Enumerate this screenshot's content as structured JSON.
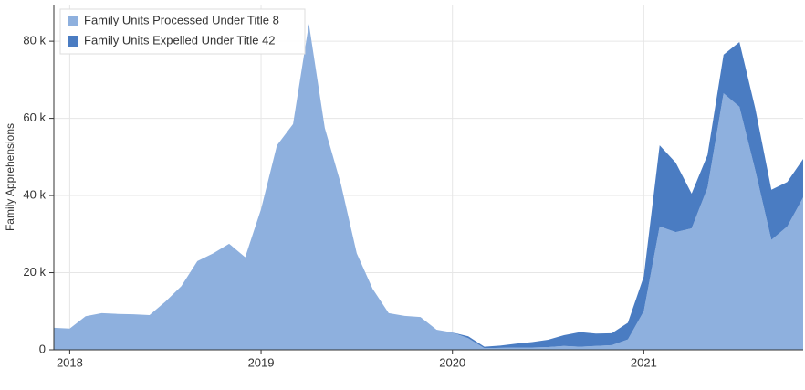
{
  "chart_data": {
    "type": "stacked_area",
    "ylabel": "Family Apprehensions",
    "x": [
      2017.917,
      2018.0,
      2018.083,
      2018.167,
      2018.25,
      2018.333,
      2018.417,
      2018.5,
      2018.583,
      2018.667,
      2018.75,
      2018.833,
      2018.917,
      2019.0,
      2019.083,
      2019.167,
      2019.25,
      2019.333,
      2019.417,
      2019.5,
      2019.583,
      2019.667,
      2019.75,
      2019.833,
      2019.917,
      2020.0,
      2020.083,
      2020.167,
      2020.25,
      2020.333,
      2020.417,
      2020.5,
      2020.583,
      2020.667,
      2020.75,
      2020.833,
      2020.917,
      2021.0,
      2021.083,
      2021.167,
      2021.25,
      2021.333,
      2021.417,
      2021.5,
      2021.583,
      2021.667,
      2021.75,
      2021.833
    ],
    "series": [
      {
        "name": "Family Units Processed Under Title 8",
        "color": "#8eb0de",
        "values": [
          5700,
          5500,
          8700,
          9500,
          9300,
          9200,
          9000,
          12500,
          16500,
          23000,
          25000,
          27500,
          24000,
          36500,
          53000,
          58500,
          84500,
          57500,
          43000,
          25000,
          15800,
          9500,
          8800,
          8500,
          5200,
          4500,
          3000,
          400,
          500,
          600,
          600,
          700,
          1000,
          800,
          1000,
          1200,
          2700,
          10000,
          32000,
          30500,
          31500,
          42000,
          66500,
          63000,
          46500,
          28500,
          32000,
          39500
        ]
      },
      {
        "name": "Family Units Expelled Under Title 42",
        "color": "#4a7cc2",
        "values": [
          0,
          0,
          0,
          0,
          0,
          0,
          0,
          0,
          0,
          0,
          0,
          0,
          0,
          0,
          0,
          0,
          0,
          0,
          0,
          0,
          0,
          0,
          0,
          0,
          0,
          0,
          500,
          400,
          600,
          1000,
          1400,
          1900,
          2800,
          3800,
          3200,
          3100,
          4300,
          9000,
          21000,
          18000,
          9000,
          8500,
          10000,
          16800,
          16000,
          13000,
          11500,
          10000
        ]
      }
    ],
    "xlim": [
      2017.917,
      2021.833
    ],
    "xticks": [
      2018,
      2019,
      2020,
      2021
    ],
    "ylim": [
      0,
      89500
    ],
    "yticks": [
      0,
      {
        "value": 20000,
        "label": "20 k"
      },
      {
        "value": 40000,
        "label": "40 k"
      },
      {
        "value": 60000,
        "label": "60 k"
      },
      {
        "value": 80000,
        "label": "80 k"
      }
    ],
    "grid": true,
    "legend": "upper left"
  }
}
